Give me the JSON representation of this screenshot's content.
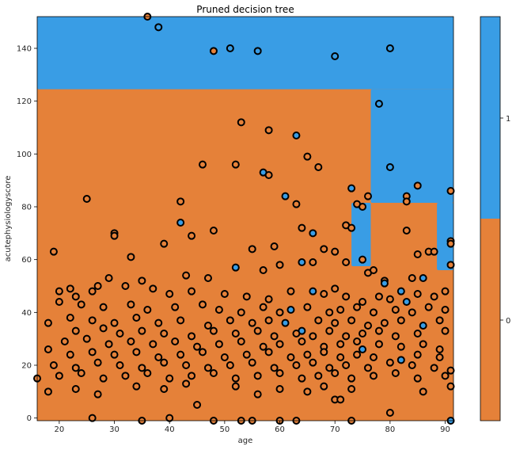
{
  "chart_data": {
    "type": "scatter",
    "title": "Pruned decision tree",
    "xlabel": "age",
    "ylabel": "acutephysiologyscore",
    "xlim": [
      16,
      91.5
    ],
    "ylim": [
      -1,
      152
    ],
    "xticks": [
      "20",
      "30",
      "40",
      "50",
      "60",
      "70",
      "80",
      "90"
    ],
    "yticks": [
      "0",
      "20",
      "40",
      "60",
      "80",
      "100",
      "120",
      "140"
    ],
    "grid": false,
    "colors": {
      "class_0": "#e58139",
      "class_1": "#399de5"
    },
    "colorbar": {
      "ticks": [
        "0",
        "1"
      ]
    },
    "decision_regions": [
      {
        "class": 1,
        "x": [
          16,
          91.5
        ],
        "y": [
          124.5,
          152
        ]
      },
      {
        "class": 1,
        "x": [
          76.5,
          91.5
        ],
        "y": [
          81.5,
          124.5
        ]
      },
      {
        "class": 1,
        "x": [
          73,
          76.5
        ],
        "y": [
          57.5,
          81.5
        ]
      },
      {
        "class": 1,
        "x": [
          88.5,
          91.5
        ],
        "y": [
          56,
          81.5
        ]
      }
    ],
    "points": [
      [
        36,
        152,
        0
      ],
      [
        38,
        148,
        1
      ],
      [
        48,
        139,
        0
      ],
      [
        51,
        140,
        1
      ],
      [
        56,
        139,
        1
      ],
      [
        70,
        137,
        1
      ],
      [
        80,
        140,
        1
      ],
      [
        78,
        119,
        1
      ],
      [
        53,
        112,
        0
      ],
      [
        58,
        109,
        0
      ],
      [
        63,
        107,
        1
      ],
      [
        65,
        99,
        0
      ],
      [
        67,
        95,
        0
      ],
      [
        46,
        96,
        0
      ],
      [
        52,
        96,
        0
      ],
      [
        80,
        95,
        1
      ],
      [
        57,
        93,
        1
      ],
      [
        58,
        92,
        0
      ],
      [
        25,
        83,
        0
      ],
      [
        42,
        82,
        0
      ],
      [
        61,
        84,
        1
      ],
      [
        63,
        81,
        0
      ],
      [
        73,
        87,
        1
      ],
      [
        76,
        84,
        0
      ],
      [
        83,
        84,
        0
      ],
      [
        83,
        82,
        0
      ],
      [
        85,
        88,
        0
      ],
      [
        91,
        86,
        0
      ],
      [
        74,
        81,
        0
      ],
      [
        75,
        80,
        0
      ],
      [
        42,
        74,
        1
      ],
      [
        48,
        71,
        0
      ],
      [
        66,
        70,
        1
      ],
      [
        64,
        72,
        0
      ],
      [
        72,
        73,
        0
      ],
      [
        73,
        72,
        0
      ],
      [
        83,
        71,
        0
      ],
      [
        30,
        70,
        0
      ],
      [
        30,
        69,
        0
      ],
      [
        44,
        69,
        0
      ],
      [
        19,
        63,
        0
      ],
      [
        33,
        61,
        0
      ],
      [
        39,
        66,
        0
      ],
      [
        55,
        64,
        0
      ],
      [
        59,
        65,
        0
      ],
      [
        68,
        64,
        0
      ],
      [
        70,
        63,
        0
      ],
      [
        87,
        63,
        0
      ],
      [
        88,
        63,
        0
      ],
      [
        91,
        67,
        0
      ],
      [
        91,
        66,
        0
      ],
      [
        91,
        58,
        0
      ],
      [
        52,
        57,
        1
      ],
      [
        64,
        59,
        1
      ],
      [
        66,
        59,
        0
      ],
      [
        72,
        59,
        0
      ],
      [
        75,
        60,
        0
      ],
      [
        85,
        62,
        0
      ],
      [
        60,
        58,
        0
      ],
      [
        57,
        56,
        0
      ],
      [
        29,
        53,
        0
      ],
      [
        35,
        52,
        0
      ],
      [
        43,
        54,
        0
      ],
      [
        47,
        53,
        0
      ],
      [
        76,
        55,
        0
      ],
      [
        77,
        56,
        0
      ],
      [
        79,
        52,
        0
      ],
      [
        79,
        51,
        1
      ],
      [
        82,
        48,
        1
      ],
      [
        84,
        53,
        0
      ],
      [
        86,
        53,
        1
      ],
      [
        27,
        50,
        0
      ],
      [
        22,
        49,
        0
      ],
      [
        20,
        48,
        0
      ],
      [
        23,
        46,
        0
      ],
      [
        26,
        48,
        0
      ],
      [
        32,
        50,
        0
      ],
      [
        37,
        49,
        0
      ],
      [
        40,
        47,
        0
      ],
      [
        44,
        48,
        0
      ],
      [
        50,
        47,
        0
      ],
      [
        54,
        46,
        0
      ],
      [
        58,
        45,
        0
      ],
      [
        62,
        48,
        0
      ],
      [
        66,
        48,
        1
      ],
      [
        68,
        47,
        0
      ],
      [
        70,
        49,
        0
      ],
      [
        72,
        46,
        0
      ],
      [
        75,
        44,
        0
      ],
      [
        78,
        46,
        0
      ],
      [
        80,
        45,
        0
      ],
      [
        83,
        44,
        1
      ],
      [
        85,
        47,
        0
      ],
      [
        88,
        46,
        0
      ],
      [
        90,
        48,
        0
      ],
      [
        20,
        44,
        0
      ],
      [
        24,
        43,
        0
      ],
      [
        28,
        42,
        0
      ],
      [
        33,
        43,
        0
      ],
      [
        36,
        41,
        0
      ],
      [
        41,
        42,
        0
      ],
      [
        46,
        43,
        0
      ],
      [
        49,
        41,
        0
      ],
      [
        53,
        40,
        0
      ],
      [
        57,
        42,
        0
      ],
      [
        60,
        40,
        0
      ],
      [
        62,
        41,
        1
      ],
      [
        65,
        42,
        0
      ],
      [
        69,
        40,
        0
      ],
      [
        71,
        41,
        0
      ],
      [
        74,
        42,
        0
      ],
      [
        77,
        40,
        0
      ],
      [
        81,
        41,
        0
      ],
      [
        84,
        40,
        0
      ],
      [
        87,
        42,
        0
      ],
      [
        90,
        41,
        0
      ],
      [
        22,
        38,
        0
      ],
      [
        26,
        37,
        0
      ],
      [
        30,
        36,
        0
      ],
      [
        34,
        38,
        0
      ],
      [
        38,
        36,
        0
      ],
      [
        42,
        37,
        0
      ],
      [
        47,
        35,
        0
      ],
      [
        51,
        37,
        0
      ],
      [
        55,
        36,
        0
      ],
      [
        58,
        37,
        0
      ],
      [
        61,
        36,
        1
      ],
      [
        64,
        33,
        1
      ],
      [
        67,
        37,
        0
      ],
      [
        70,
        36,
        0
      ],
      [
        73,
        37,
        0
      ],
      [
        76,
        35,
        0
      ],
      [
        79,
        36,
        0
      ],
      [
        82,
        37,
        0
      ],
      [
        86,
        35,
        1
      ],
      [
        89,
        37,
        0
      ],
      [
        18,
        36,
        0
      ],
      [
        23,
        33,
        0
      ],
      [
        28,
        34,
        0
      ],
      [
        31,
        32,
        0
      ],
      [
        35,
        33,
        0
      ],
      [
        39,
        32,
        0
      ],
      [
        44,
        31,
        0
      ],
      [
        48,
        33,
        0
      ],
      [
        52,
        32,
        0
      ],
      [
        56,
        33,
        0
      ],
      [
        59,
        31,
        0
      ],
      [
        63,
        32,
        0
      ],
      [
        66,
        31,
        0
      ],
      [
        69,
        33,
        0
      ],
      [
        72,
        31,
        0
      ],
      [
        75,
        32,
        0
      ],
      [
        78,
        33,
        0
      ],
      [
        81,
        31,
        0
      ],
      [
        85,
        32,
        0
      ],
      [
        90,
        33,
        0
      ],
      [
        21,
        29,
        0
      ],
      [
        25,
        30,
        0
      ],
      [
        29,
        28,
        0
      ],
      [
        33,
        29,
        0
      ],
      [
        37,
        28,
        0
      ],
      [
        41,
        29,
        0
      ],
      [
        45,
        27,
        0
      ],
      [
        49,
        28,
        0
      ],
      [
        53,
        29,
        0
      ],
      [
        57,
        27,
        0
      ],
      [
        60,
        28,
        0
      ],
      [
        64,
        29,
        0
      ],
      [
        68,
        27,
        0
      ],
      [
        71,
        28,
        0
      ],
      [
        74,
        29,
        0
      ],
      [
        75,
        26,
        1
      ],
      [
        78,
        28,
        0
      ],
      [
        82,
        27,
        0
      ],
      [
        86,
        28,
        0
      ],
      [
        89,
        26,
        0
      ],
      [
        18,
        26,
        0
      ],
      [
        22,
        24,
        0
      ],
      [
        26,
        25,
        0
      ],
      [
        30,
        24,
        0
      ],
      [
        34,
        25,
        0
      ],
      [
        38,
        23,
        0
      ],
      [
        42,
        24,
        0
      ],
      [
        46,
        25,
        0
      ],
      [
        50,
        23,
        0
      ],
      [
        54,
        24,
        0
      ],
      [
        58,
        25,
        0
      ],
      [
        62,
        23,
        0
      ],
      [
        65,
        24,
        0
      ],
      [
        68,
        25,
        0
      ],
      [
        71,
        23,
        0
      ],
      [
        74,
        24,
        0
      ],
      [
        77,
        23,
        0
      ],
      [
        82,
        22,
        1
      ],
      [
        85,
        24,
        0
      ],
      [
        89,
        23,
        0
      ],
      [
        19,
        20,
        0
      ],
      [
        23,
        19,
        0
      ],
      [
        27,
        21,
        0
      ],
      [
        31,
        20,
        0
      ],
      [
        35,
        19,
        0
      ],
      [
        39,
        21,
        0
      ],
      [
        43,
        20,
        0
      ],
      [
        47,
        19,
        0
      ],
      [
        51,
        20,
        0
      ],
      [
        55,
        21,
        0
      ],
      [
        59,
        19,
        0
      ],
      [
        63,
        20,
        0
      ],
      [
        66,
        21,
        0
      ],
      [
        69,
        19,
        0
      ],
      [
        72,
        20,
        0
      ],
      [
        76,
        19,
        0
      ],
      [
        80,
        21,
        0
      ],
      [
        84,
        20,
        0
      ],
      [
        88,
        19,
        0
      ],
      [
        91,
        18,
        0
      ],
      [
        16,
        15,
        0
      ],
      [
        20,
        16,
        0
      ],
      [
        24,
        17,
        0
      ],
      [
        28,
        15,
        0
      ],
      [
        32,
        16,
        0
      ],
      [
        36,
        17,
        0
      ],
      [
        40,
        15,
        0
      ],
      [
        44,
        16,
        0
      ],
      [
        48,
        17,
        0
      ],
      [
        52,
        15,
        0
      ],
      [
        56,
        16,
        0
      ],
      [
        60,
        17,
        0
      ],
      [
        64,
        15,
        0
      ],
      [
        67,
        16,
        0
      ],
      [
        70,
        17,
        0
      ],
      [
        73,
        15,
        0
      ],
      [
        77,
        16,
        0
      ],
      [
        81,
        17,
        0
      ],
      [
        85,
        15,
        0
      ],
      [
        90,
        16,
        0
      ],
      [
        18,
        10,
        0
      ],
      [
        23,
        11,
        0
      ],
      [
        27,
        9,
        0
      ],
      [
        34,
        12,
        0
      ],
      [
        39,
        11,
        0
      ],
      [
        43,
        13,
        0
      ],
      [
        52,
        12,
        0
      ],
      [
        56,
        9,
        0
      ],
      [
        60,
        11,
        0
      ],
      [
        65,
        10,
        0
      ],
      [
        68,
        12,
        0
      ],
      [
        70,
        7,
        0
      ],
      [
        71,
        7,
        0
      ],
      [
        73,
        11,
        0
      ],
      [
        86,
        10,
        0
      ],
      [
        91,
        12,
        0
      ],
      [
        45,
        5,
        0
      ],
      [
        80,
        2,
        0
      ],
      [
        26,
        0,
        0
      ],
      [
        35,
        -1,
        0
      ],
      [
        40,
        0,
        0
      ],
      [
        48,
        -1,
        0
      ],
      [
        53,
        -1,
        0
      ],
      [
        55,
        -1,
        0
      ],
      [
        60,
        -1,
        0
      ],
      [
        63,
        -1,
        0
      ],
      [
        73,
        -1,
        0
      ],
      [
        91,
        -1,
        1
      ]
    ]
  }
}
